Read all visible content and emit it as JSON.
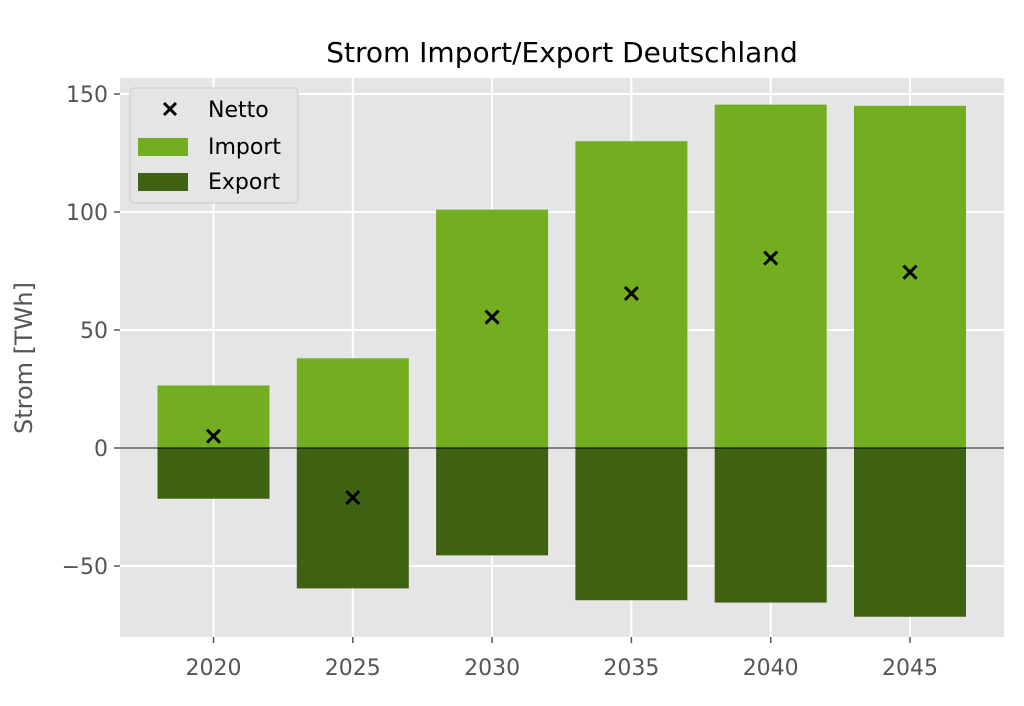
{
  "chart_data": {
    "type": "bar",
    "title": "Strom Import/Export Deutschland",
    "xlabel": "",
    "ylabel": "Strom [TWh]",
    "categories": [
      "2020",
      "2025",
      "2030",
      "2035",
      "2040",
      "2045"
    ],
    "series": [
      {
        "name": "Import",
        "values": [
          26.5,
          38,
          101,
          130,
          145.5,
          145
        ],
        "color": "#72ae20"
      },
      {
        "name": "Export",
        "values": [
          -21.5,
          -59.5,
          -45.5,
          -64.5,
          -65.5,
          -71.5
        ],
        "color": "#3f6212"
      },
      {
        "name": "Netto",
        "type": "scatter",
        "marker": "x",
        "values": [
          5,
          -21,
          55.5,
          65.5,
          80.5,
          74.5
        ],
        "color": "#000000"
      }
    ],
    "ylim": [
      -80,
      157
    ],
    "yticks": [
      150,
      100,
      50,
      0,
      -50
    ],
    "ytick_labels": [
      "150",
      "100",
      "50",
      "0",
      "−50"
    ],
    "grid": true,
    "zero_line": true,
    "legend": {
      "position": "top-left",
      "entries": [
        "Netto",
        "Import",
        "Export"
      ]
    },
    "colors": {
      "background": "#e5e5e5",
      "grid": "#ffffff",
      "import": "#72ae20",
      "export": "#3f6212",
      "netto": "#000000"
    }
  }
}
